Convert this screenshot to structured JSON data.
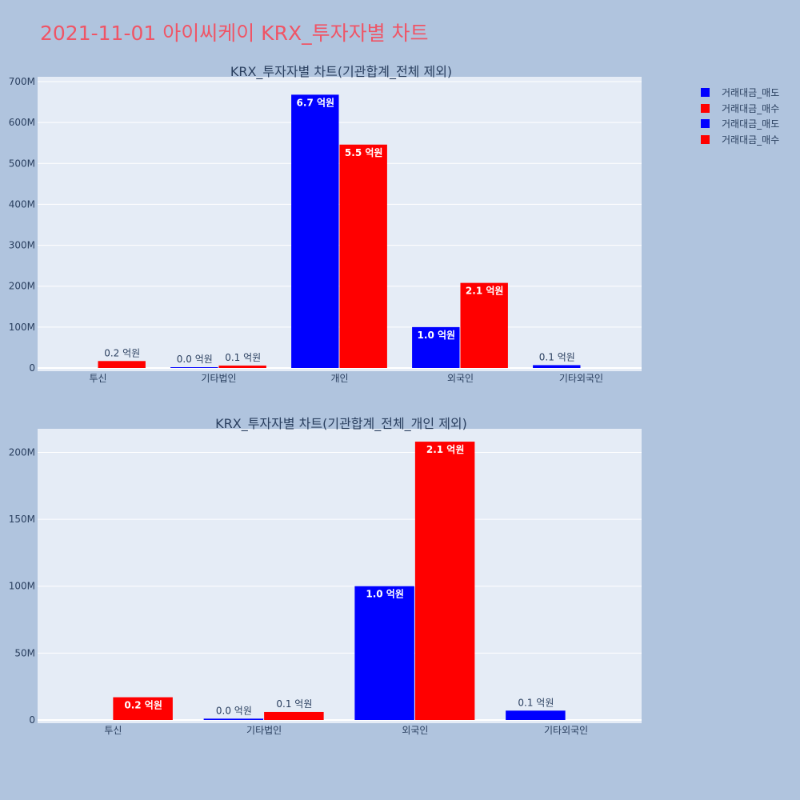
{
  "title": "2021-11-01 아이씨케이 KRX_투자자별 차트",
  "legend": [
    {
      "label": "거래대금_매도",
      "color": "#0000ff"
    },
    {
      "label": "거래대금_매수",
      "color": "#ff0000"
    },
    {
      "label": "거래대금_매도",
      "color": "#0000ff"
    },
    {
      "label": "거래대금_매수",
      "color": "#ff0000"
    }
  ],
  "chart_data": [
    {
      "type": "bar",
      "title": "KRX_투자자별 차트(기관합계_전체 제외)",
      "categories": [
        "투신",
        "기타법인",
        "개인",
        "외국인",
        "기타외국인"
      ],
      "ylim": [
        0,
        700
      ],
      "yticks": [
        0,
        100,
        200,
        300,
        400,
        500,
        600,
        700
      ],
      "ytick_labels": [
        "0",
        "100M",
        "200M",
        "300M",
        "400M",
        "500M",
        "600M",
        "700M"
      ],
      "series": [
        {
          "name": "거래대금_매도",
          "color": "#0000ff",
          "values": [
            null,
            1,
            668,
            100,
            7
          ],
          "labels": [
            "",
            "0.0 억원",
            "6.7 억원",
            "1.0 억원",
            "0.1 억원"
          ]
        },
        {
          "name": "거래대금_매수",
          "color": "#ff0000",
          "values": [
            17,
            6,
            546,
            208,
            null
          ],
          "labels": [
            "0.2 억원",
            "0.1 억원",
            "5.5 억원",
            "2.1 억원",
            ""
          ]
        }
      ]
    },
    {
      "type": "bar",
      "title": "KRX_투자자별 차트(기관합계_전체_개인 제외)",
      "categories": [
        "투신",
        "기타법인",
        "외국인",
        "기타외국인"
      ],
      "ylim": [
        0,
        220
      ],
      "yticks": [
        0,
        50,
        100,
        150,
        200
      ],
      "ytick_labels": [
        "0",
        "50M",
        "100M",
        "150M",
        "200M"
      ],
      "series": [
        {
          "name": "거래대금_매도",
          "color": "#0000ff",
          "values": [
            null,
            1,
            100,
            7
          ],
          "labels": [
            "",
            "0.0 억원",
            "1.0 억원",
            "0.1 억원"
          ]
        },
        {
          "name": "거래대금_매수",
          "color": "#ff0000",
          "values": [
            17,
            6,
            208,
            null
          ],
          "labels": [
            "0.2 억원",
            "0.1 억원",
            "2.1 억원",
            ""
          ]
        }
      ]
    }
  ]
}
